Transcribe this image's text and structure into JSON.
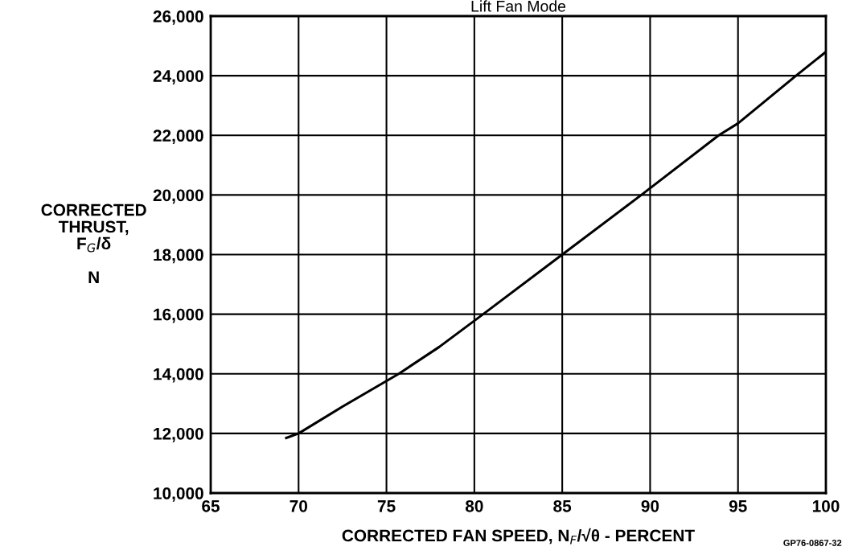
{
  "chart_data": {
    "type": "line",
    "title": "Lift Fan Mode",
    "xlabel": "CORRECTED FAN SPEED, N$_{F}$/√θ - PERCENT",
    "ylabel": "CORRECTED\nTHRUST,\nF$_{G}$/δ\n\nN",
    "annotations": [
      "GP76-0867-32"
    ],
    "x": [
      69.3,
      70,
      72.5,
      75.7,
      78,
      80.5,
      85,
      89.5,
      93.9,
      95,
      98.3,
      100
    ],
    "series": [
      {
        "color": "#000000",
        "values": [
          11850,
          12000,
          12900,
          14000,
          14900,
          16000,
          18000,
          20000,
          22000,
          22400,
          24000,
          24800
        ]
      }
    ],
    "xlim": [
      65,
      100
    ],
    "xticks": [
      65,
      70,
      75,
      80,
      85,
      90,
      95,
      100
    ],
    "ylim": [
      10000,
      26000
    ],
    "yticks": [
      {
        "value": 10000,
        "label": "10,000"
      },
      {
        "value": 12000,
        "label": "12,000"
      },
      {
        "value": 14000,
        "label": "14,000"
      },
      {
        "value": 16000,
        "label": "16,000"
      },
      {
        "value": 18000,
        "label": "18,000"
      },
      {
        "value": 20000,
        "label": "20,000"
      },
      {
        "value": 22000,
        "label": "22,000"
      },
      {
        "value": 24000,
        "label": "24,000"
      },
      {
        "value": 26000,
        "label": "26,000"
      }
    ],
    "grid": true,
    "legend": false,
    "marker": "none",
    "line_style": "solid"
  }
}
